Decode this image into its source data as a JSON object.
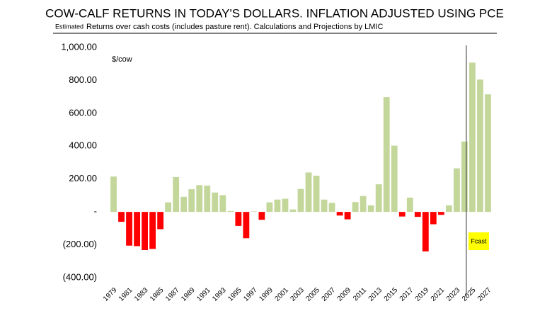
{
  "chart_data": {
    "type": "bar",
    "title": "COW-CALF RETURNS IN TODAY'S DOLLARS.  INFLATION ADJUSTED USING PCE",
    "subtitle_prefix": "Estimated",
    "subtitle": "Returns over cash costs (includes pasture rent).  Calculations and Projections by LMIC",
    "y_unit_label": "$/cow",
    "annotation": "Fcast",
    "categories": [
      "1979",
      null,
      "1981",
      null,
      "1983",
      null,
      "1985",
      null,
      "1987",
      null,
      "1989",
      null,
      "1991",
      null,
      "1993",
      null,
      "1995",
      null,
      "1997",
      null,
      "1999",
      null,
      "2001",
      null,
      "2003",
      null,
      "2005",
      null,
      "2007",
      null,
      "2009",
      null,
      "2011",
      null,
      "2013",
      null,
      "2015",
      null,
      "2017",
      null,
      "2019",
      null,
      "2021",
      null,
      "2023",
      null,
      "2025",
      null,
      "2027"
    ],
    "values": [
      215,
      -60,
      -205,
      -208,
      -232,
      -225,
      -105,
      58,
      212,
      92,
      138,
      163,
      160,
      118,
      102,
      5,
      -85,
      -160,
      3,
      -48,
      58,
      75,
      80,
      15,
      140,
      240,
      220,
      75,
      55,
      -22,
      -45,
      60,
      97,
      40,
      168,
      698,
      403,
      -28,
      87,
      -30,
      -240,
      -75,
      -18,
      40,
      265,
      428,
      908,
      805,
      715
    ],
    "positive_color": "#c4d79b",
    "negative_color": "#ff0000",
    "ylim": [
      -400,
      1000
    ],
    "yticks": [
      {
        "value": 1000,
        "label": "1,000.00"
      },
      {
        "value": 800,
        "label": "800.00"
      },
      {
        "value": 600,
        "label": "600.00"
      },
      {
        "value": 400,
        "label": "400.00"
      },
      {
        "value": 200,
        "label": "200.00"
      },
      {
        "value": 0,
        "label": "-"
      },
      {
        "value": -200,
        "label": "(200.00)"
      },
      {
        "value": -400,
        "label": "(400.00)"
      }
    ],
    "grid": false
  }
}
